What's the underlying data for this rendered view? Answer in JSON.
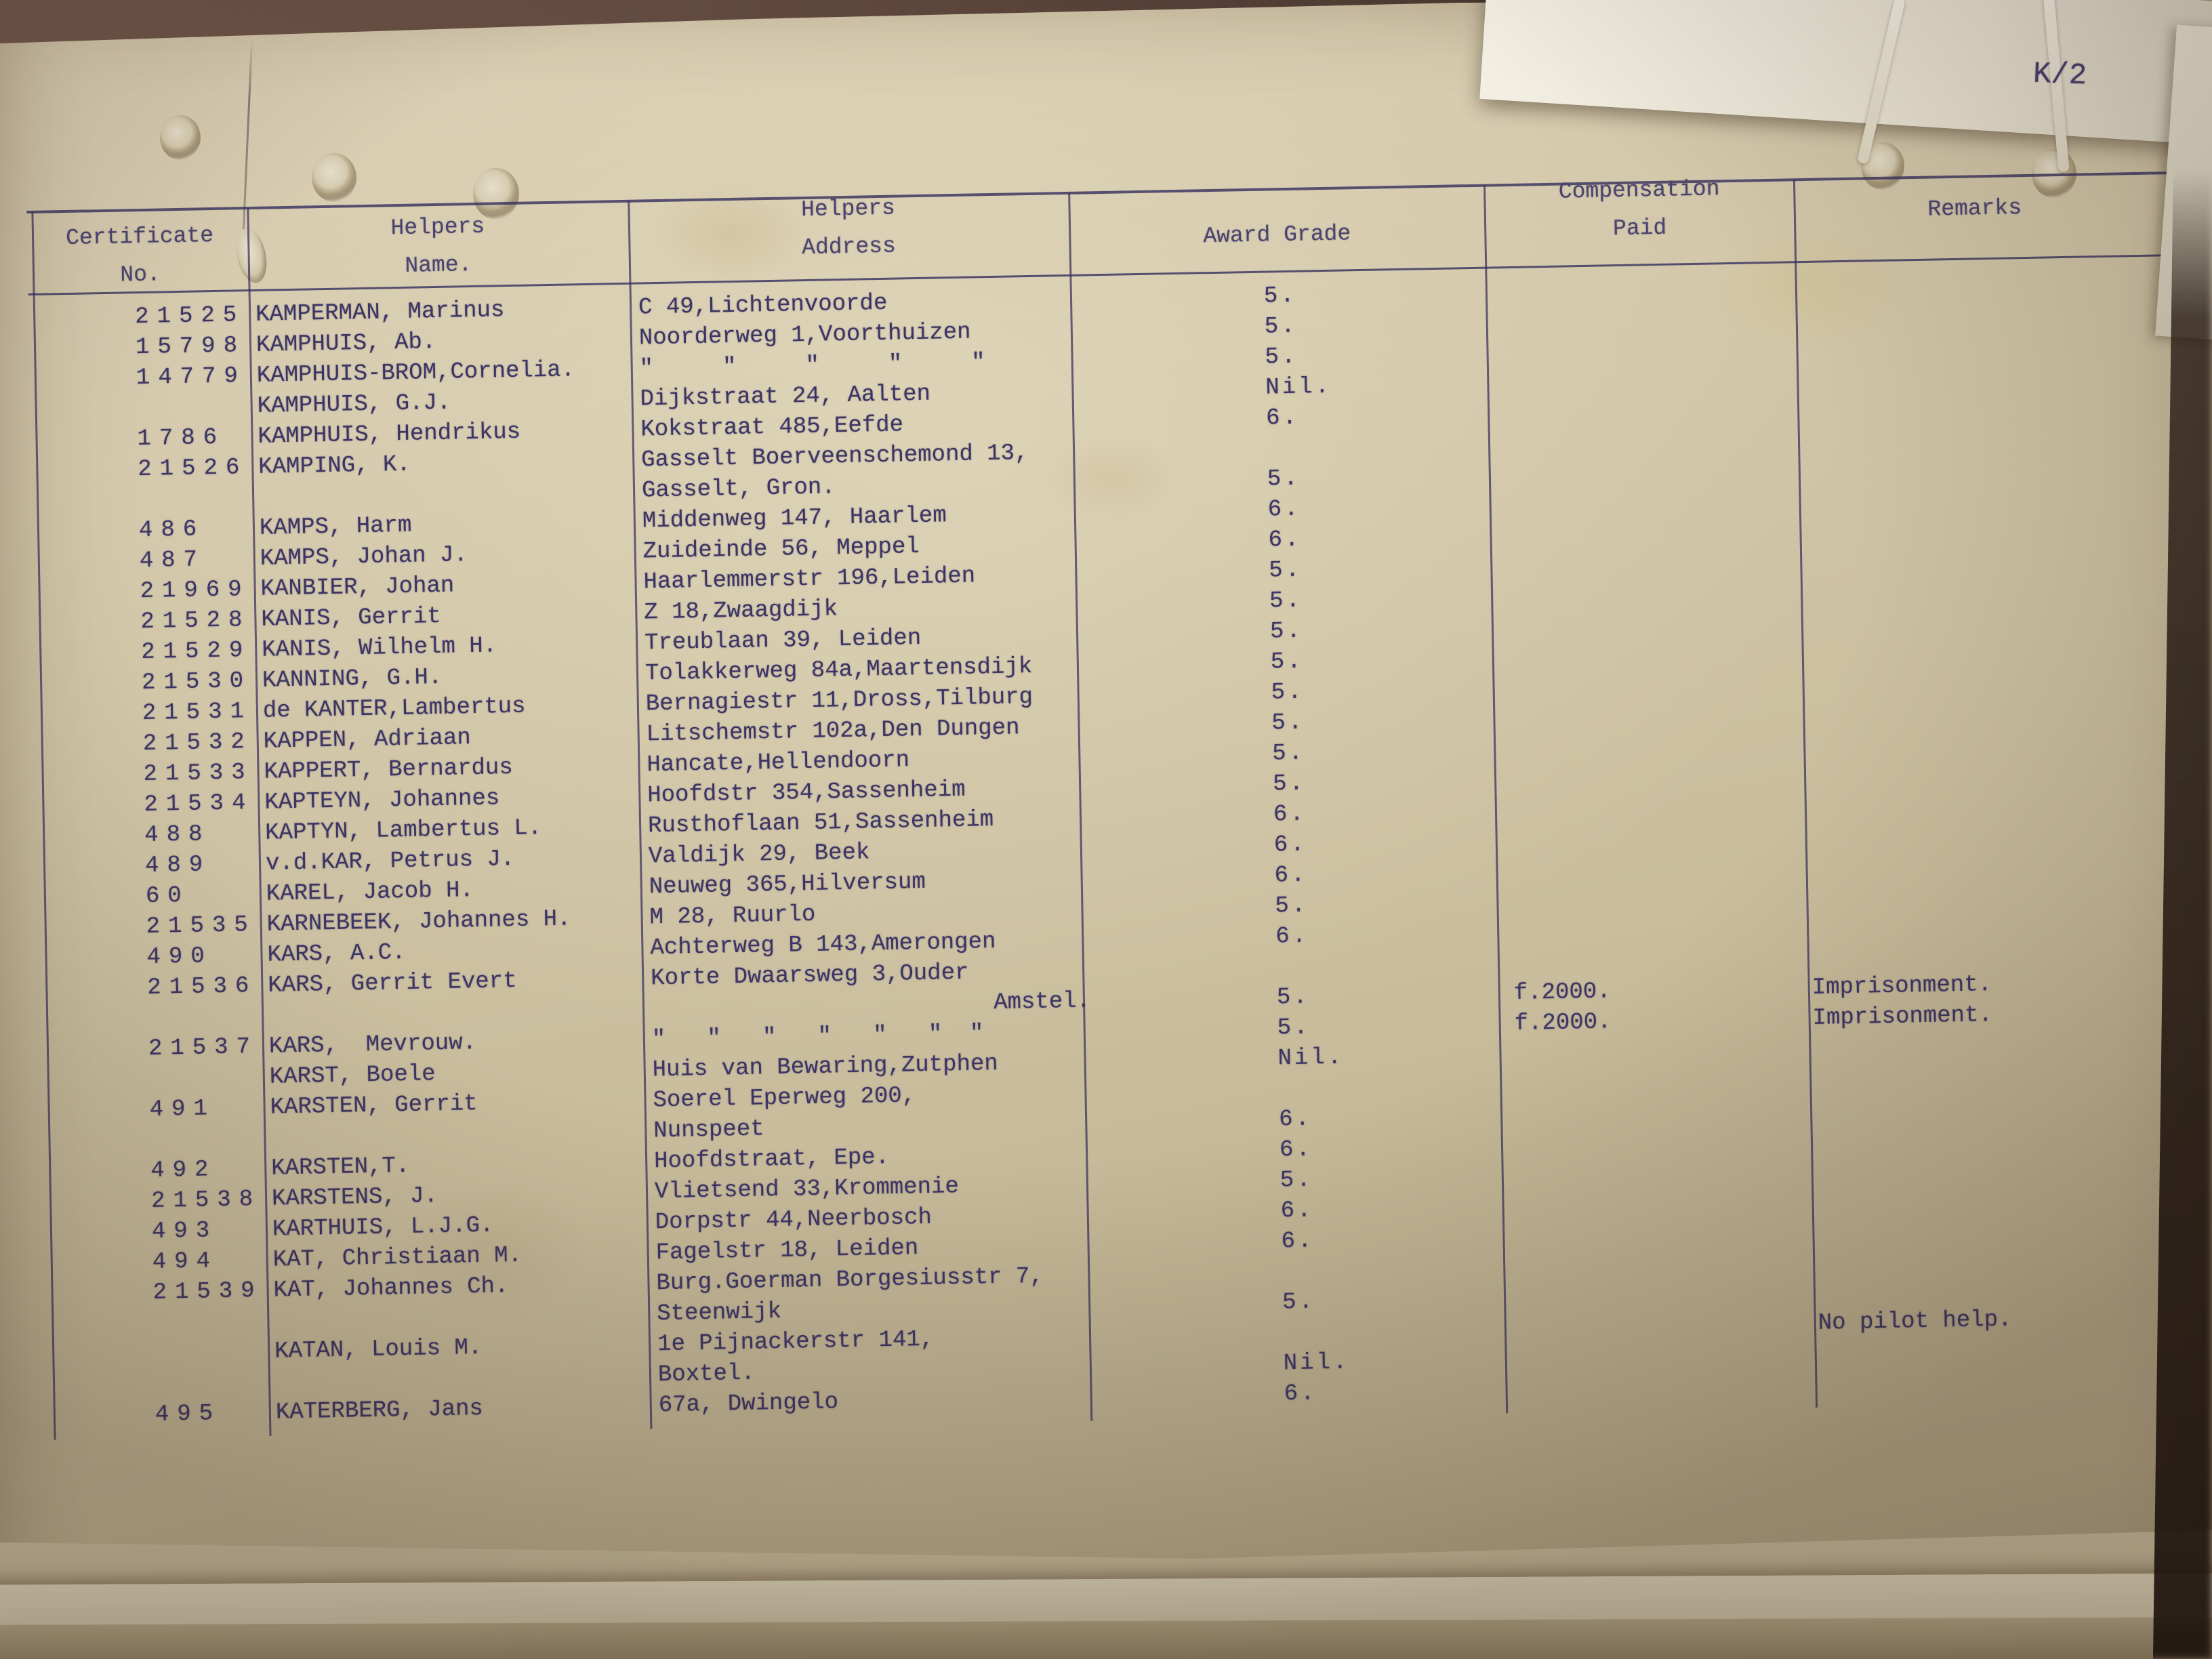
{
  "page_mark": "K/2",
  "colors": {
    "ink": "#3c3563",
    "paper": "#cfc4a6"
  },
  "table": {
    "headers": {
      "certificate": [
        "Certificate",
        "No."
      ],
      "helpers_name": [
        "Helpers",
        "Name."
      ],
      "helpers_address": [
        "Helpers",
        "Address"
      ],
      "award_grade": "Award Grade",
      "compensation": [
        "Compensation",
        "Paid"
      ],
      "remarks": "Remarks"
    },
    "rows": [
      {
        "cert": "21525",
        "name": "KAMPERMAN, Marinus",
        "addr": "C 49,Lichtenvoorde",
        "grade": "5."
      },
      {
        "cert": "15798",
        "name": "KAMPHUIS, Ab.",
        "addr": "Noorderweg 1,Voorthuizen",
        "grade": "5."
      },
      {
        "cert": "14779",
        "name": "KAMPHUIS-BROM,Cornelia.",
        "addr": "\"     \"     \"     \"     \"",
        "grade": "5."
      },
      {
        "cert": "",
        "name": "KAMPHUIS, G.J.",
        "addr": "Dijkstraat 24, Aalten",
        "grade": "Nil."
      },
      {
        "cert": "1786",
        "name": "KAMPHUIS, Hendrikus",
        "addr": "Kokstraat 485,Eefde",
        "grade": "6."
      },
      {
        "cert": "21526",
        "name": "KAMPING, K.",
        "addr": "Gasselt Boerveenschemond 13,",
        "grade": ""
      },
      {
        "cert": "",
        "name": "",
        "addr": "Gasselt, Gron.",
        "grade": "5."
      },
      {
        "cert": "486",
        "name": "KAMPS, Harm",
        "addr": "Middenweg 147, Haarlem",
        "grade": "6."
      },
      {
        "cert": "487",
        "name": "KAMPS, Johan J.",
        "addr": "Zuideinde 56, Meppel",
        "grade": "6."
      },
      {
        "cert": "21969",
        "name": "KANBIER, Johan",
        "addr": "Haarlemmerstr 196,Leiden",
        "grade": "5."
      },
      {
        "cert": "21528",
        "name": "KANIS, Gerrit",
        "addr": "Z 18,Zwaagdijk",
        "grade": "5."
      },
      {
        "cert": "21529",
        "name": "KANIS, Wilhelm H.",
        "addr": "Treublaan 39, Leiden",
        "grade": "5."
      },
      {
        "cert": "21530",
        "name": "KANNING, G.H.",
        "addr": "Tolakkerweg 84a,Maartensdijk",
        "grade": "5."
      },
      {
        "cert": "21531",
        "name": "de KANTER,Lambertus",
        "addr": "Bernagiestr 11,Dross,Tilburg",
        "grade": "5."
      },
      {
        "cert": "21532",
        "name": "KAPPEN, Adriaan",
        "addr": "Litschemstr 102a,Den Dungen",
        "grade": "5."
      },
      {
        "cert": "21533",
        "name": "KAPPERT, Bernardus",
        "addr": "Hancate,Hellendoorn",
        "grade": "5."
      },
      {
        "cert": "21534",
        "name": "KAPTEYN, Johannes",
        "addr": "Hoofdstr 354,Sassenheim",
        "grade": "5."
      },
      {
        "cert": "488",
        "name": "KAPTYN, Lambertus L.",
        "addr": "Rusthoflaan 51,Sassenheim",
        "grade": "6."
      },
      {
        "cert": "489",
        "name": "v.d.KAR, Petrus J.",
        "addr": "Valdijk 29, Beek",
        "grade": "6."
      },
      {
        "cert": "60",
        "name": "KAREL, Jacob H.",
        "addr": "Neuweg 365,Hilversum",
        "grade": "6."
      },
      {
        "cert": "21535",
        "name": "KARNEBEEK, Johannes H.",
        "addr": "M 28, Ruurlo",
        "grade": "5."
      },
      {
        "cert": "490",
        "name": "KARS, A.C.",
        "addr": "Achterweg B 143,Amerongen",
        "grade": "6."
      },
      {
        "cert": "21536",
        "name": "KARS, Gerrit Evert",
        "addr": "Korte Dwaarsweg 3,Ouder",
        "grade": ""
      },
      {
        "cert": "",
        "name": "",
        "addr": "Amstel.",
        "addr_align": "right",
        "grade": "5.",
        "comp": "f.2000.",
        "remark": "Imprisonment."
      },
      {
        "cert": "21537",
        "name": "KARS,  Mevrouw.",
        "addr": "\"   \"   \"   \"   \"   \"  \"",
        "grade": "5.",
        "comp": "f.2000.",
        "remark": "Imprisonment."
      },
      {
        "cert": "",
        "name": "KARST, Boele",
        "addr": "Huis van Bewaring,Zutphen",
        "grade": "Nil."
      },
      {
        "cert": "491",
        "name": "KARSTEN, Gerrit",
        "addr": "Soerel Eperweg 200,",
        "grade": ""
      },
      {
        "cert": "",
        "name": "",
        "addr": "Nunspeet",
        "grade": "6."
      },
      {
        "cert": "492",
        "name": "KARSTEN,T.",
        "addr": "Hoofdstraat, Epe.",
        "grade": "6."
      },
      {
        "cert": "21538",
        "name": "KARSTENS, J.",
        "addr": "Vlietsend 33,Krommenie",
        "grade": "5."
      },
      {
        "cert": "493",
        "name": "KARTHUIS, L.J.G.",
        "addr": "Dorpstr 44,Neerbosch",
        "grade": "6."
      },
      {
        "cert": "494",
        "name": "KAT, Christiaan M.",
        "addr": "Fagelstr 18, Leiden",
        "grade": "6."
      },
      {
        "cert": "21539",
        "name": "KAT, Johannes Ch.",
        "addr": "Burg.Goerman Borgesiusstr 7,",
        "grade": ""
      },
      {
        "cert": "",
        "name": "",
        "addr": "Steenwijk",
        "grade": "5."
      },
      {
        "cert": "",
        "name": "KATAN, Louis M.",
        "addr": "1e Pijnackerstr 141,",
        "grade": "",
        "remark": "No pilot help."
      },
      {
        "cert": "",
        "name": "",
        "addr": "Boxtel.",
        "grade": "Nil."
      },
      {
        "cert": "495",
        "name": "KATERBERG, Jans",
        "addr": "67a, Dwingelo",
        "grade": "6."
      }
    ]
  }
}
